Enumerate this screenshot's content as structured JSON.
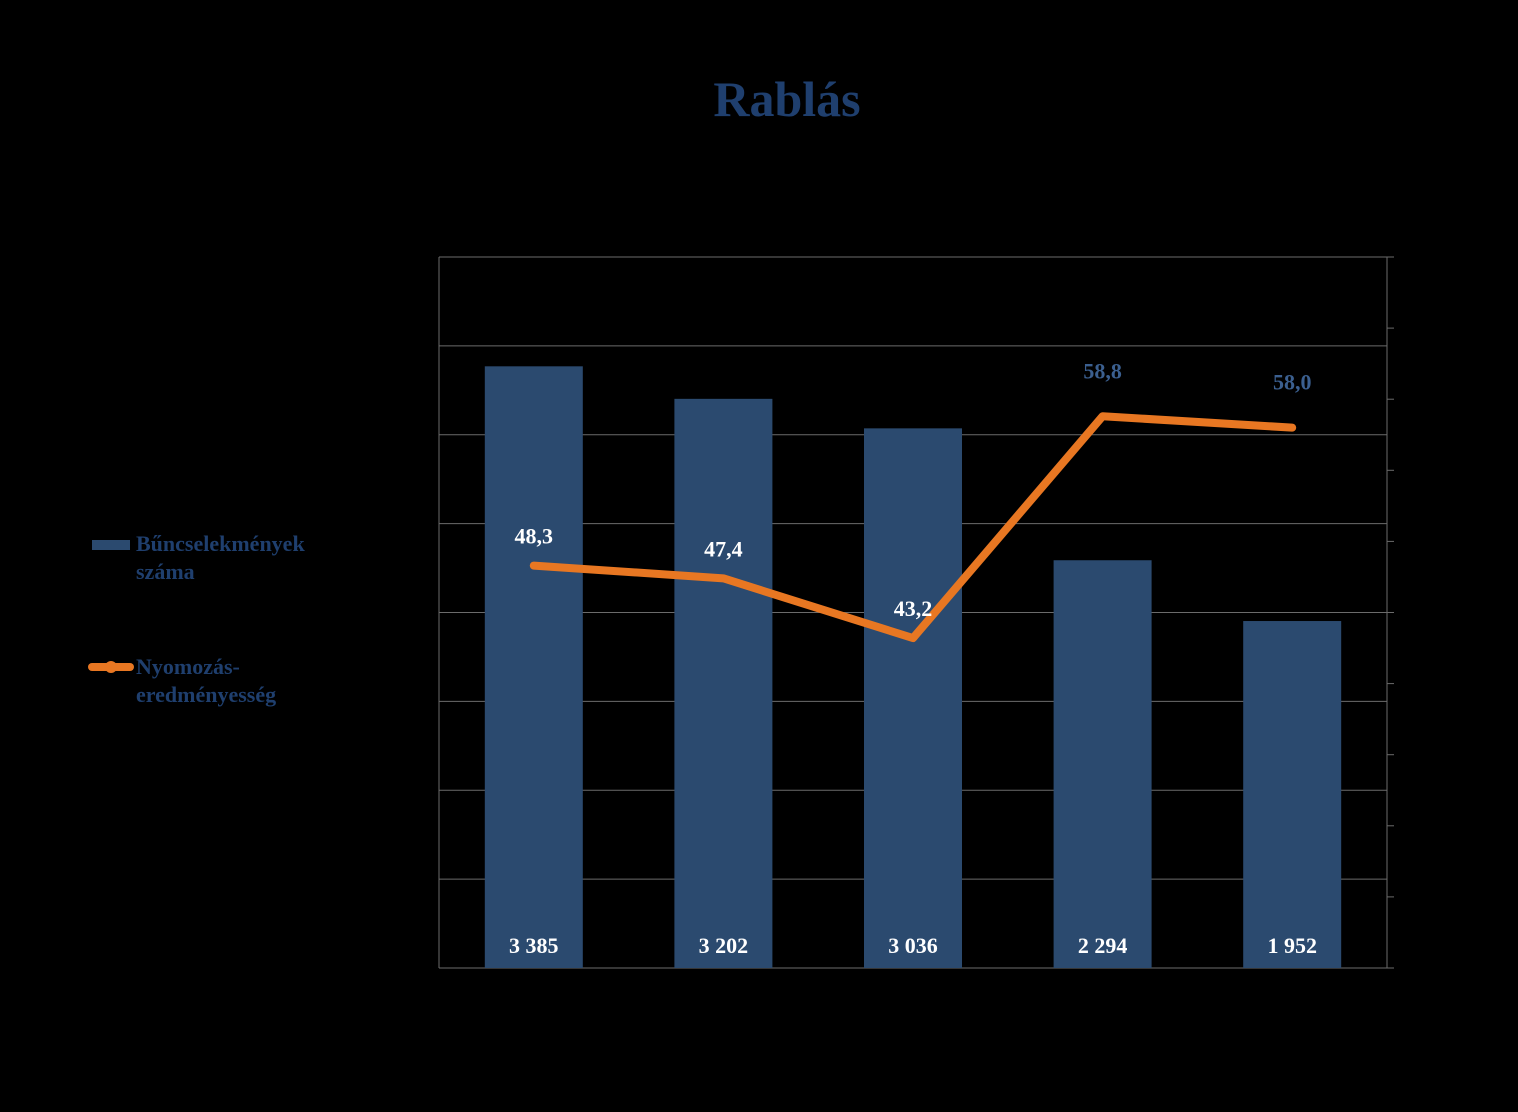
{
  "chart_data": {
    "type": "bar",
    "title": "Rablás",
    "xlabel": "",
    "ylabel": "",
    "categories": [
      "",
      "",
      "",
      "",
      ""
    ],
    "series": [
      {
        "name": "Bűncselekmények száma",
        "kind": "bar",
        "axis": "left",
        "values": [
          3385,
          3202,
          3036,
          2294,
          1952
        ],
        "labels": [
          "3 385",
          "3 202",
          "3 036",
          "2 294",
          "1 952"
        ],
        "color": "#2B4A6F"
      },
      {
        "name": "Nyomozás-eredményesség",
        "kind": "line",
        "axis": "right",
        "values": [
          48.3,
          47.4,
          43.2,
          58.8,
          58.0
        ],
        "labels": [
          "48,3",
          "47,4",
          "43,2",
          "58,8",
          "58,0"
        ],
        "color": "#E87722"
      }
    ],
    "ylim": [
      0,
      4000
    ],
    "y2lim": [
      20,
      70
    ],
    "grid": true,
    "legend": "left"
  },
  "legend": {
    "bars_label_line1": "Bűncselekmények",
    "bars_label_line2": "száma",
    "line_label_line1": "Nyomozás-",
    "line_label_line2": "eredményesség"
  },
  "colors": {
    "background": "#000000",
    "title": "#1F3F6E",
    "bar_label": "#FFFFFF",
    "line_label_dark": "#FFFFFF",
    "line_label_light": "#3B5F8F"
  }
}
